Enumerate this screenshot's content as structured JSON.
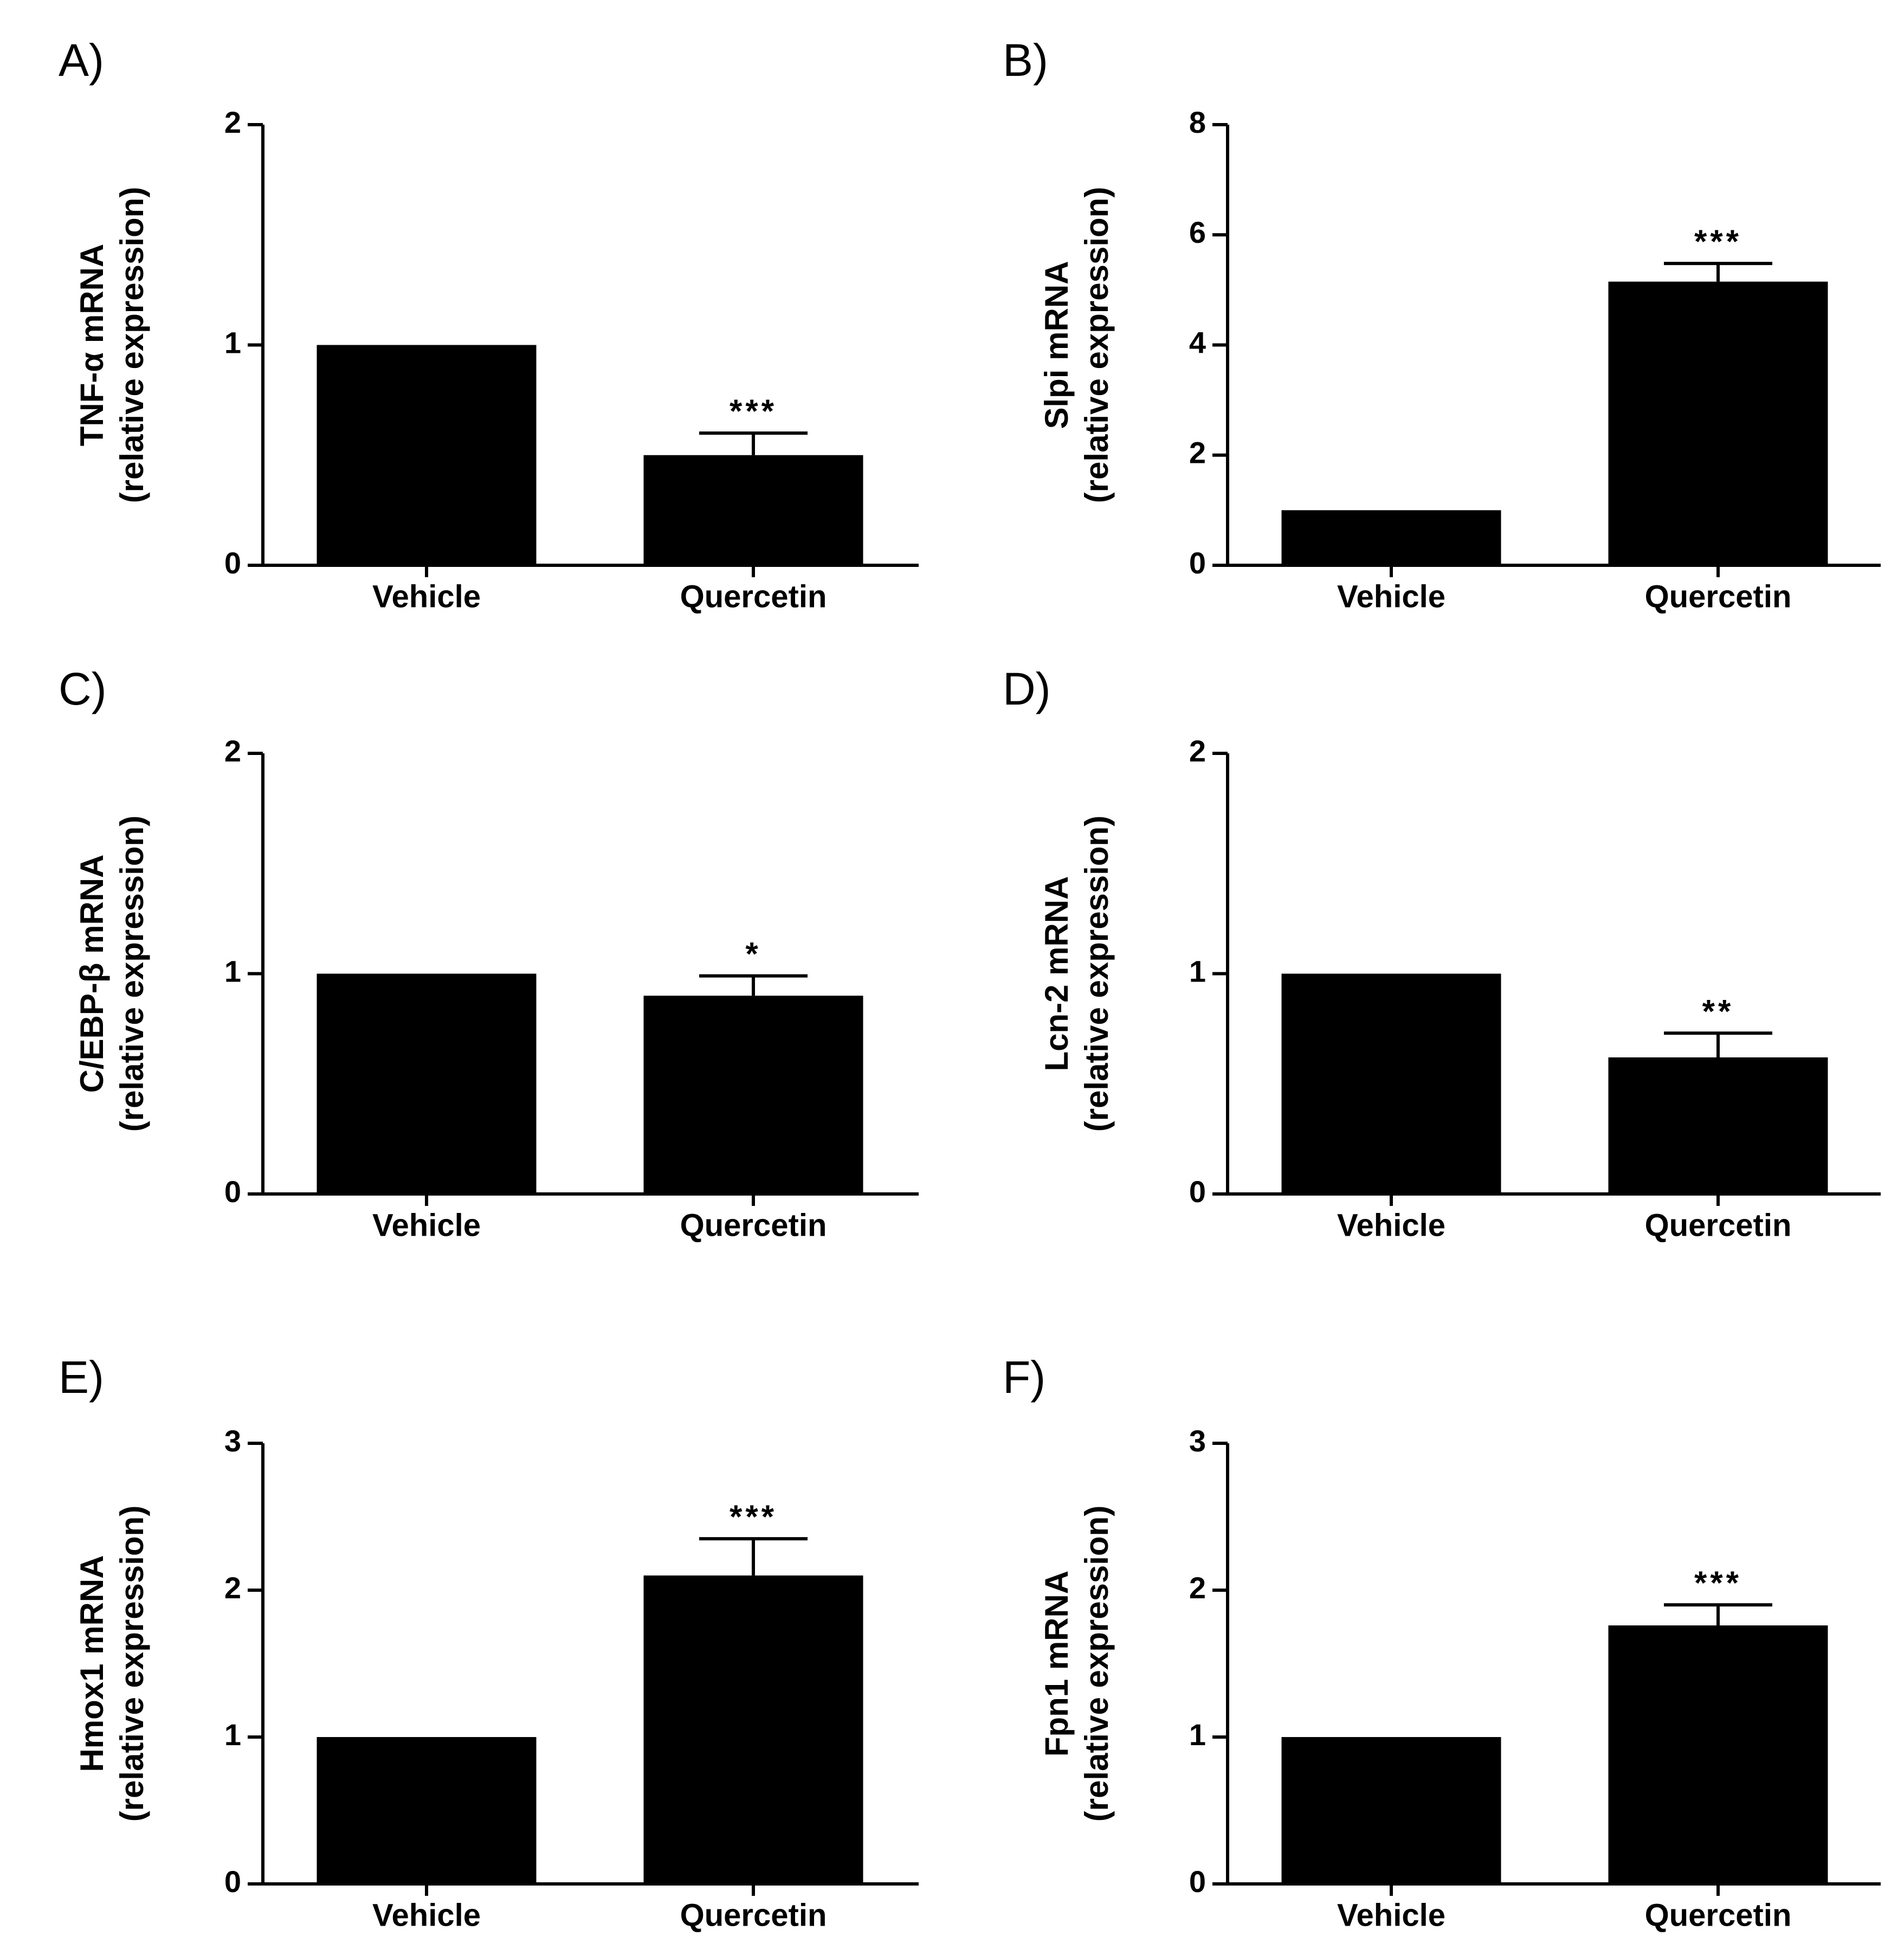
{
  "chart_data": [
    {
      "panel": "A)",
      "type": "bar",
      "categories": [
        "Vehicle",
        "Quercetin"
      ],
      "values": [
        1.0,
        0.5
      ],
      "errors": [
        0,
        0.1
      ],
      "significance": [
        "",
        "***"
      ],
      "ylabel": [
        "TNF-α mRNA",
        "(relative expression)"
      ],
      "ylim": [
        0,
        2
      ],
      "yticks": [
        "0",
        "1",
        "2"
      ]
    },
    {
      "panel": "B)",
      "type": "bar",
      "categories": [
        "Vehicle",
        "Quercetin"
      ],
      "values": [
        1.0,
        5.15
      ],
      "errors": [
        0,
        0.33
      ],
      "significance": [
        "",
        "***"
      ],
      "ylabel": [
        "Slpi mRNA",
        "(relative expression)"
      ],
      "ylim": [
        0,
        8
      ],
      "yticks": [
        "0",
        "2",
        "4",
        "6",
        "8"
      ]
    },
    {
      "panel": "C)",
      "type": "bar",
      "categories": [
        "Vehicle",
        "Quercetin"
      ],
      "values": [
        1.0,
        0.9
      ],
      "errors": [
        0,
        0.09
      ],
      "significance": [
        "",
        "*"
      ],
      "ylabel": [
        "C/EBP-β mRNA",
        "(relative expression)"
      ],
      "ylim": [
        0,
        2
      ],
      "yticks": [
        "0",
        "1",
        "2"
      ]
    },
    {
      "panel": "D)",
      "type": "bar",
      "categories": [
        "Vehicle",
        "Quercetin"
      ],
      "values": [
        1.0,
        0.62
      ],
      "errors": [
        0,
        0.11
      ],
      "significance": [
        "",
        "**"
      ],
      "ylabel": [
        "Lcn-2 mRNA",
        "(relative expression)"
      ],
      "ylim": [
        0,
        2
      ],
      "yticks": [
        "0",
        "1",
        "2"
      ]
    },
    {
      "panel": "E)",
      "type": "bar",
      "categories": [
        "Vehicle",
        "Quercetin"
      ],
      "values": [
        1.0,
        2.1
      ],
      "errors": [
        0,
        0.25
      ],
      "significance": [
        "",
        "***"
      ],
      "ylabel": [
        "Hmox1 mRNA",
        "(relative expression)"
      ],
      "ylim": [
        0,
        3
      ],
      "yticks": [
        "0",
        "1",
        "2",
        "3"
      ]
    },
    {
      "panel": "F)",
      "type": "bar",
      "categories": [
        "Vehicle",
        "Quercetin"
      ],
      "values": [
        1.0,
        1.76
      ],
      "errors": [
        0,
        0.14
      ],
      "significance": [
        "",
        "***"
      ],
      "ylabel": [
        "Fpn1 mRNA",
        "(relative expression)"
      ],
      "ylim": [
        0,
        3
      ],
      "yticks": [
        "0",
        "1",
        "2",
        "3"
      ]
    }
  ]
}
